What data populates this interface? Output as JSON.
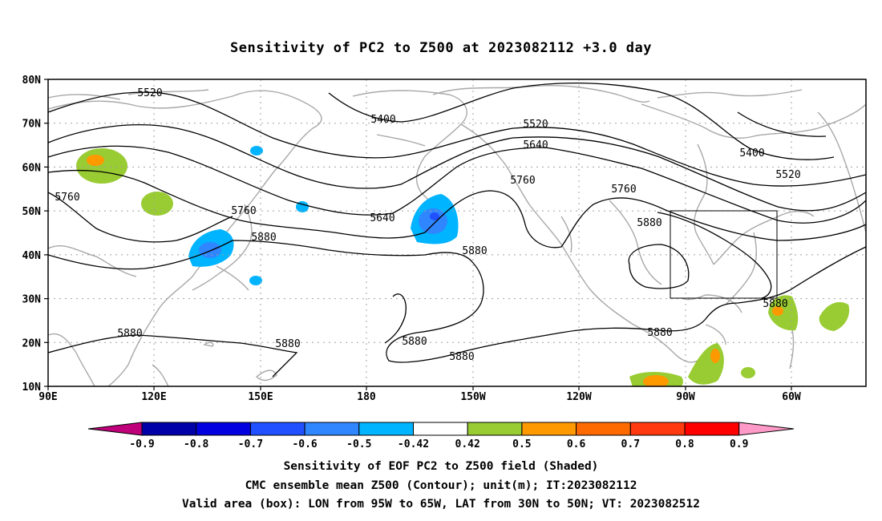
{
  "title": "Sensitivity of PC2 to Z500 at 2023082112 +3.0 day",
  "map": {
    "lat_labels": [
      "80N",
      "70N",
      "60N",
      "50N",
      "40N",
      "30N",
      "20N",
      "10N"
    ],
    "lon_labels": [
      "90E",
      "120E",
      "150E",
      "180",
      "150W",
      "120W",
      "90W",
      "60W"
    ],
    "contour_labels": [
      "5520",
      "5400",
      "5520",
      "5640",
      "5400",
      "5520",
      "5760",
      "5760",
      "5640",
      "5760",
      "5760",
      "5880",
      "5880",
      "5880",
      "5880",
      "5880",
      "5880",
      "5880",
      "5880",
      "5880"
    ],
    "valid_box": {
      "lon_from": "95W",
      "lon_to": "65W",
      "lat_from": "30N",
      "lat_to": "50N"
    }
  },
  "colorbar": {
    "levels": [
      "-0.9",
      "-0.8",
      "-0.7",
      "-0.6",
      "-0.5",
      "-0.42",
      "0.42",
      "0.5",
      "0.6",
      "0.7",
      "0.8",
      "0.9"
    ],
    "colors": [
      "#c0007a",
      "#0000a8",
      "#0000e0",
      "#2050ff",
      "#2f86ff",
      "#00b4ff",
      "#ffffff",
      "#99cc33",
      "#ff9900",
      "#ff6a00",
      "#ff3a10",
      "#ff0000",
      "#ff9ac8"
    ]
  },
  "footer": {
    "line1": "Sensitivity of EOF PC2 to Z500 field (Shaded)",
    "line2": "CMC ensemble mean Z500 (Contour); unit(m); IT:2023082112",
    "line3": "Valid area (box): LON from 95W to 65W, LAT from 30N to 50N; VT: 2023082512"
  }
}
